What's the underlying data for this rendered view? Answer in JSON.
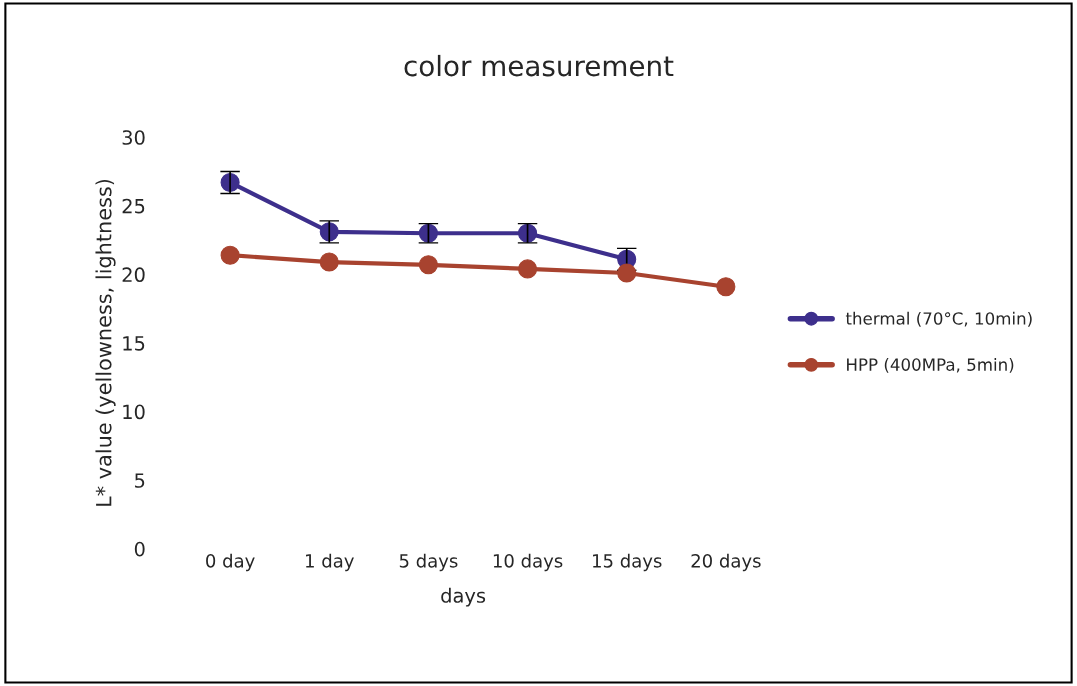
{
  "chart_data": {
    "type": "line",
    "title": "color measurement",
    "xlabel": "days",
    "ylabel": "L* value (yellowness, lightness)",
    "categories": [
      "0 day",
      "1 day",
      "5 days",
      "10 days",
      "15 days",
      "20 days"
    ],
    "series": [
      {
        "name": "thermal (70°C, 10min)",
        "color": "#3d2f8c",
        "values": [
          26.7,
          23.1,
          23.0,
          23.0,
          21.1,
          null
        ],
        "errors": [
          0.8,
          0.8,
          0.7,
          0.7,
          0.8,
          null
        ]
      },
      {
        "name": "HPP (400MPa, 5min)",
        "color": "#a8432f",
        "values": [
          21.4,
          20.9,
          20.7,
          20.4,
          20.1,
          19.1
        ]
      }
    ],
    "ylim": [
      0,
      30
    ],
    "yticks": [
      0,
      5,
      10,
      15,
      20,
      25,
      30
    ],
    "marker": "circle",
    "legend": "right",
    "grid": false
  }
}
